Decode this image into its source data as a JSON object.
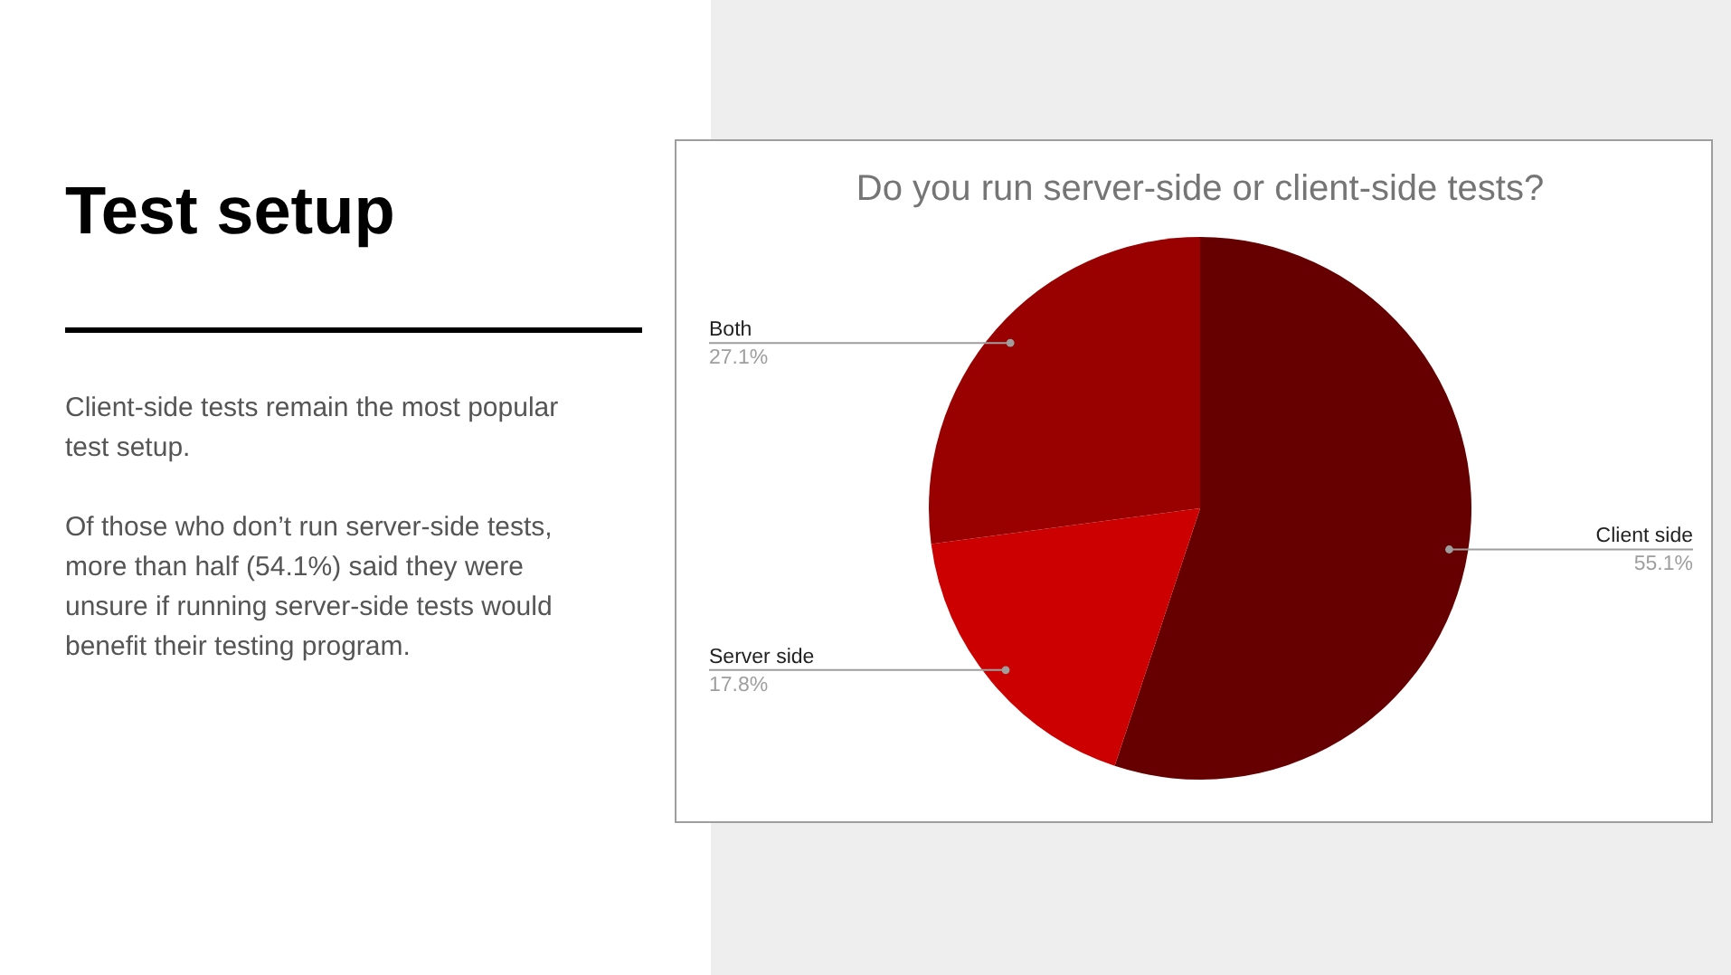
{
  "chart_data": {
    "type": "pie",
    "title": "Do you run server-side or client-side tests?",
    "categories": [
      "Client side",
      "Server side",
      "Both"
    ],
    "values": [
      55.1,
      17.8,
      27.1
    ],
    "value_labels": [
      "55.1%",
      "17.8%",
      "27.1%"
    ],
    "colors": [
      "#660000",
      "#cc0000",
      "#990000"
    ],
    "annotations": [
      "Test setup",
      "Client-side tests remain the most popular test setup.",
      "Of those who don’t run server-side tests, more than half (54.1%) said they were unsure if running server-side tests would benefit their testing program."
    ]
  }
}
